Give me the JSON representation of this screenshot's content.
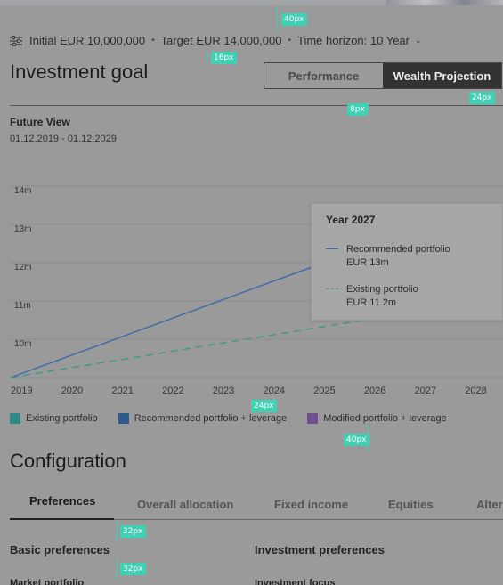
{
  "filters": {
    "initial": "Initial EUR 10,000,000",
    "target": "Target EUR 14,000,000",
    "horizon": "Time horizon: 10 Year"
  },
  "page_title": "Investment goal",
  "view_toggle": {
    "performance": "Performance",
    "wealth_projection": "Wealth Projection",
    "selected": "Wealth Projection"
  },
  "future_view": {
    "title": "Future View",
    "date_range": "01.12.2019 - 01.12.2029"
  },
  "chart_data": {
    "type": "line",
    "x": [
      "2019",
      "2020",
      "2021",
      "2022",
      "2023",
      "2024",
      "2025",
      "2026",
      "2027",
      "2028"
    ],
    "y_ticks": [
      "10m",
      "11m",
      "12m",
      "13m",
      "14m"
    ],
    "ylim": [
      9,
      14
    ],
    "series": [
      {
        "name": "Recommended portfolio",
        "style": "solid",
        "color": "#3d6aa8",
        "points": [
          [
            2019,
            9.0
          ],
          [
            2025,
            11.9
          ]
        ]
      },
      {
        "name": "Existing portfolio",
        "style": "dashed",
        "color": "#3b9a80",
        "points": [
          [
            2019,
            9.0
          ],
          [
            2026,
            10.5
          ]
        ]
      }
    ]
  },
  "tooltip": {
    "year": "Year 2027",
    "rows": [
      {
        "label": "Recommended portfolio",
        "value": "EUR 13m"
      },
      {
        "label": "Existing portfolio",
        "value": "EUR 11.2m"
      }
    ]
  },
  "legend": [
    {
      "label": "Existing portfolio",
      "color": "#2f8a86"
    },
    {
      "label": "Recommended portfolio + leverage",
      "color": "#2f5a8e"
    },
    {
      "label": "Modified portfolio + leverage",
      "color": "#6d4f8f"
    }
  ],
  "configuration_title": "Configuration",
  "tabs": [
    "Preferences",
    "Overall allocation",
    "Fixed income",
    "Equities",
    "Altern"
  ],
  "sections": {
    "basic": "Basic preferences",
    "investment": "Investment preferences",
    "market": "Market portfolio",
    "focus": "Investment focus"
  },
  "annotations": [
    "40px",
    "16px",
    "8px",
    "24px",
    "24px",
    "40px",
    "32px",
    "32px"
  ]
}
